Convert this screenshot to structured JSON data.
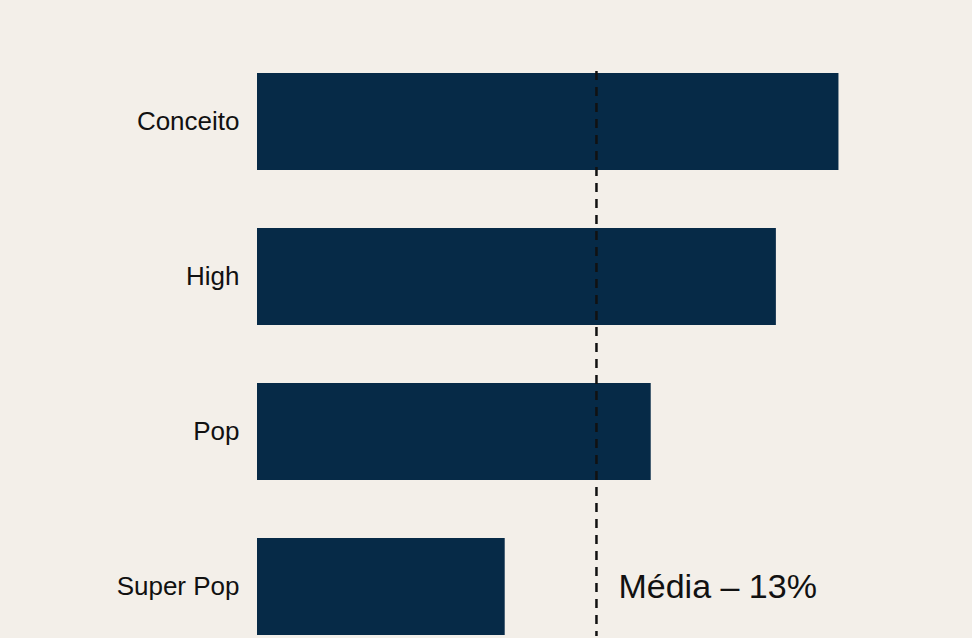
{
  "chart_data": {
    "type": "bar",
    "orientation": "horizontal",
    "categories": [
      "Conceito",
      "High",
      "Pop",
      "Super Pop"
    ],
    "values": [
      22.3,
      19.9,
      15.1,
      9.5
    ],
    "color": "#062a47",
    "xlim": [
      0,
      27
    ],
    "grid": false,
    "tick_labels": "y",
    "reference_line": {
      "value": 13,
      "label": "Média – 13%",
      "line_style": "dashed"
    }
  }
}
